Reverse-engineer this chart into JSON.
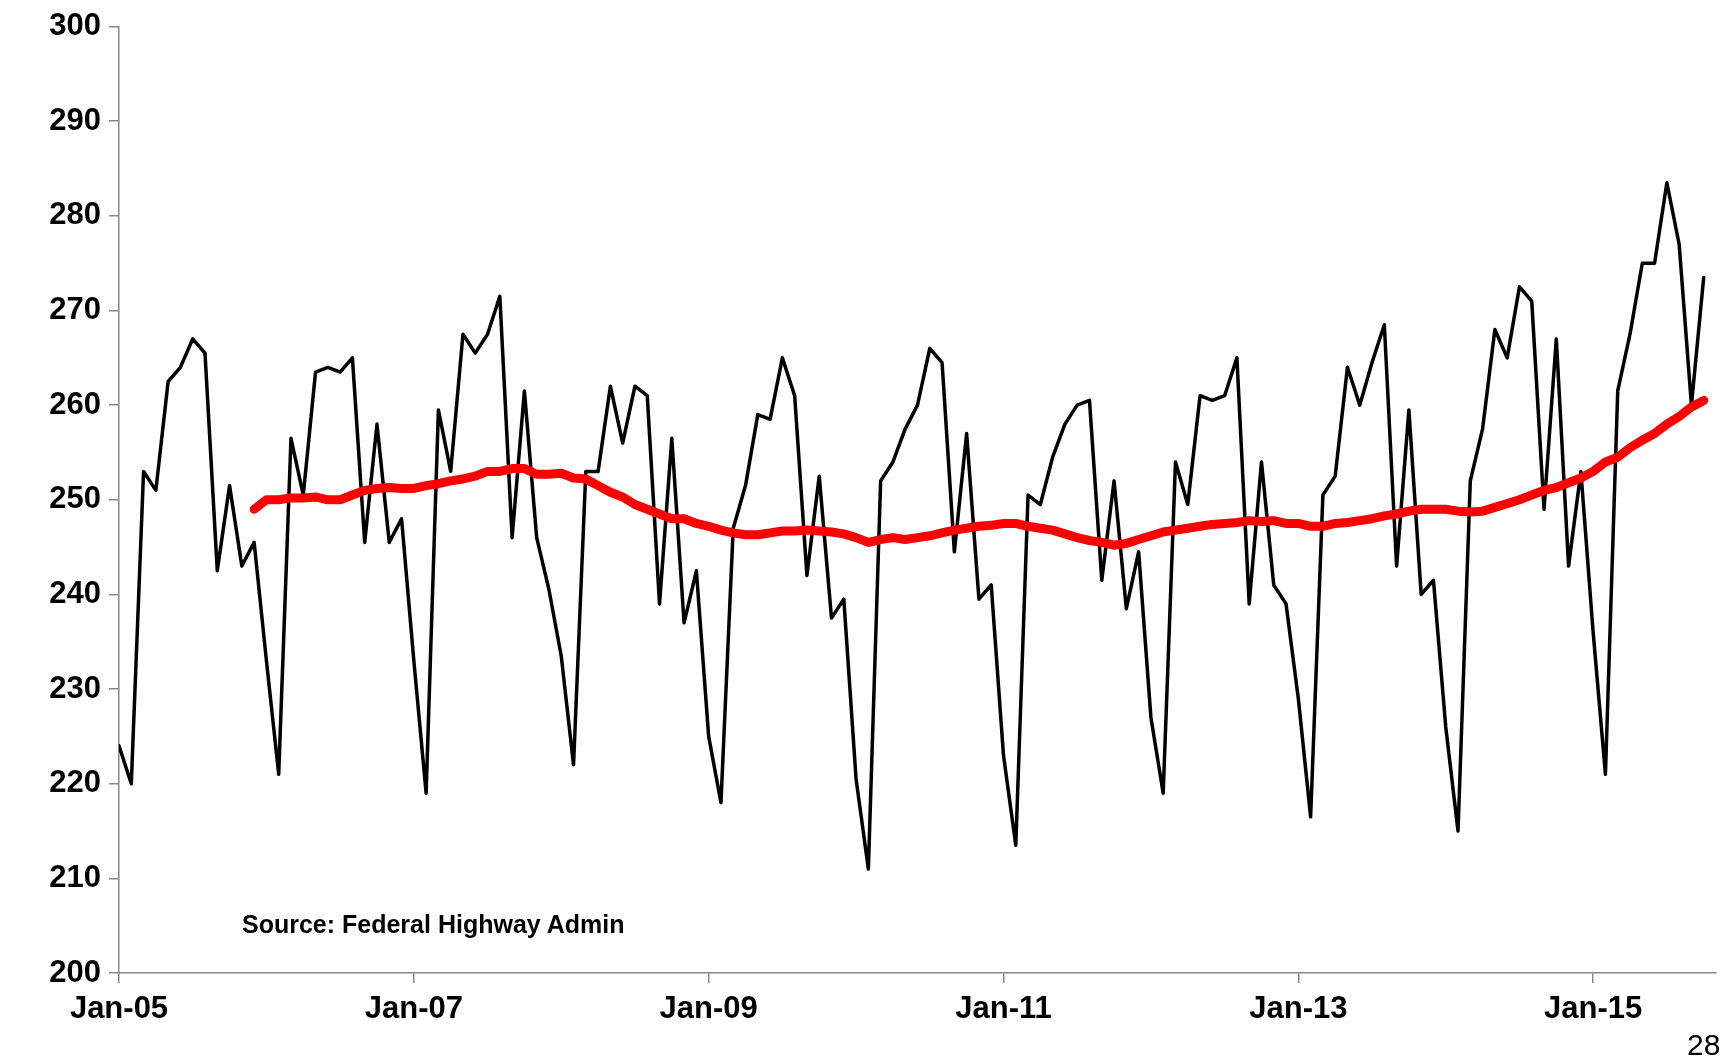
{
  "chart_data": {
    "type": "line",
    "x": [
      "2005-01",
      "2005-02",
      "2005-03",
      "2005-04",
      "2005-05",
      "2005-06",
      "2005-07",
      "2005-08",
      "2005-09",
      "2005-10",
      "2005-11",
      "2005-12",
      "2006-01",
      "2006-02",
      "2006-03",
      "2006-04",
      "2006-05",
      "2006-06",
      "2006-07",
      "2006-08",
      "2006-09",
      "2006-10",
      "2006-11",
      "2006-12",
      "2007-01",
      "2007-02",
      "2007-03",
      "2007-04",
      "2007-05",
      "2007-06",
      "2007-07",
      "2007-08",
      "2007-09",
      "2007-10",
      "2007-11",
      "2007-12",
      "2008-01",
      "2008-02",
      "2008-03",
      "2008-04",
      "2008-05",
      "2008-06",
      "2008-07",
      "2008-08",
      "2008-09",
      "2008-10",
      "2008-11",
      "2008-12",
      "2009-01",
      "2009-02",
      "2009-03",
      "2009-04",
      "2009-05",
      "2009-06",
      "2009-07",
      "2009-08",
      "2009-09",
      "2009-10",
      "2009-11",
      "2009-12",
      "2010-01",
      "2010-02",
      "2010-03",
      "2010-04",
      "2010-05",
      "2010-06",
      "2010-07",
      "2010-08",
      "2010-09",
      "2010-10",
      "2010-11",
      "2010-12",
      "2011-01",
      "2011-02",
      "2011-03",
      "2011-04",
      "2011-05",
      "2011-06",
      "2011-07",
      "2011-08",
      "2011-09",
      "2011-10",
      "2011-11",
      "2011-12",
      "2012-01",
      "2012-02",
      "2012-03",
      "2012-04",
      "2012-05",
      "2012-06",
      "2012-07",
      "2012-08",
      "2012-09",
      "2012-10",
      "2012-11",
      "2012-12",
      "2013-01",
      "2013-02",
      "2013-03",
      "2013-04",
      "2013-05",
      "2013-06",
      "2013-07",
      "2013-08",
      "2013-09",
      "2013-10",
      "2013-11",
      "2013-12",
      "2014-01",
      "2014-02",
      "2014-03",
      "2014-04",
      "2014-05",
      "2014-06",
      "2014-07",
      "2014-08",
      "2014-09",
      "2014-10",
      "2014-11",
      "2014-12",
      "2015-01",
      "2015-02",
      "2015-03",
      "2015-04",
      "2015-05",
      "2015-06",
      "2015-07",
      "2015-08",
      "2015-09",
      "2015-10"
    ],
    "series": [
      {
        "color": "#000000",
        "values": [
          224,
          220,
          253,
          251,
          262.5,
          264,
          267,
          265.5,
          242.5,
          251.5,
          243,
          245.5,
          233,
          221,
          256.5,
          250.5,
          263.5,
          264,
          263.5,
          265,
          245.5,
          258,
          245.5,
          248,
          233,
          219,
          259.5,
          253,
          267.5,
          265.5,
          267.5,
          271.5,
          246,
          261.5,
          246,
          240.5,
          233.5,
          222,
          253,
          253,
          262,
          256,
          262,
          261,
          239,
          256.5,
          237,
          242.5,
          225,
          218,
          247,
          251.5,
          259,
          258.5,
          265,
          261,
          242,
          252.5,
          237.5,
          239.5,
          220.5,
          211,
          252,
          254,
          257.5,
          260,
          266,
          264.5,
          244.5,
          257,
          239.5,
          241,
          223,
          213.5,
          250.5,
          249.5,
          254.5,
          258,
          260,
          260.5,
          241.5,
          252,
          238.5,
          244.5,
          227,
          219,
          254,
          249.5,
          261,
          260.5,
          261,
          265,
          239,
          254,
          241,
          239,
          229,
          216.5,
          250.5,
          252.5,
          264,
          260,
          264.5,
          268.5,
          243,
          259.5,
          240,
          241.5,
          226,
          215,
          252,
          257.5,
          268,
          265,
          272.5,
          271,
          249,
          267,
          243,
          253,
          236,
          221,
          261.5,
          267.5,
          275,
          275,
          283.5,
          277,
          260,
          273.5
        ]
      },
      {
        "color": "#ff0000",
        "values": [
          null,
          null,
          null,
          null,
          null,
          null,
          null,
          null,
          null,
          null,
          null,
          249,
          250,
          250,
          250.2,
          250.2,
          250.3,
          250,
          250,
          250.5,
          251,
          251.2,
          251.3,
          251.2,
          251.2,
          251.5,
          251.7,
          252,
          252.2,
          252.5,
          253,
          253,
          253.3,
          253.3,
          252.7,
          252.7,
          252.8,
          252.3,
          252.2,
          251.5,
          250.8,
          250.3,
          249.5,
          249,
          248.5,
          248,
          248,
          247.5,
          247.2,
          246.8,
          246.5,
          246.3,
          246.3,
          246.5,
          246.7,
          246.7,
          246.8,
          246.7,
          246.6,
          246.4,
          246,
          245.5,
          245.8,
          246,
          245.8,
          246,
          246.2,
          246.5,
          246.8,
          247,
          247.2,
          247.3,
          247.5,
          247.5,
          247.2,
          247,
          246.8,
          246.4,
          246,
          245.7,
          245.5,
          245.2,
          245.4,
          245.8,
          246.2,
          246.6,
          246.8,
          247,
          247.2,
          247.4,
          247.5,
          247.6,
          247.8,
          247.7,
          247.8,
          247.5,
          247.5,
          247.2,
          247.2,
          247.5,
          247.6,
          247.8,
          248,
          248.3,
          248.5,
          248.8,
          249,
          249,
          249,
          248.8,
          248.7,
          248.8,
          249.2,
          249.6,
          250,
          250.5,
          251,
          251.3,
          251.8,
          252.3,
          253,
          254,
          254.5,
          255.5,
          256.3,
          257,
          258,
          258.8,
          259.8,
          260.5
        ]
      }
    ],
    "xlim": [
      "2005-01",
      "2015-11"
    ],
    "xticks": [
      {
        "value": "2005-01",
        "label": "Jan-05"
      },
      {
        "value": "2007-01",
        "label": "Jan-07"
      },
      {
        "value": "2009-01",
        "label": "Jan-09"
      },
      {
        "value": "2011-01",
        "label": "Jan-11"
      },
      {
        "value": "2013-01",
        "label": "Jan-13"
      },
      {
        "value": "2015-01",
        "label": "Jan-15"
      }
    ],
    "ylim": [
      200,
      300
    ],
    "yticks": [
      200,
      210,
      220,
      230,
      240,
      250,
      260,
      270,
      280,
      290,
      300
    ],
    "grid": false,
    "legend": false,
    "marker": "none",
    "line_style": "solid",
    "annotations": [
      "Source: Federal Highway Admin",
      "28"
    ]
  }
}
